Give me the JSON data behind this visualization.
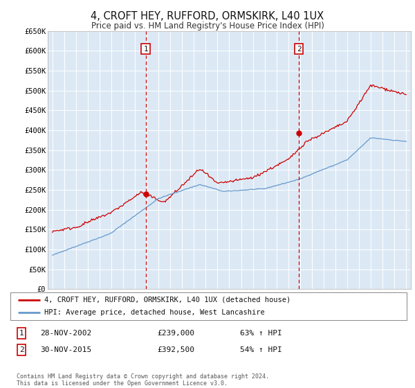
{
  "title": "4, CROFT HEY, RUFFORD, ORMSKIRK, L40 1UX",
  "subtitle": "Price paid vs. HM Land Registry's House Price Index (HPI)",
  "ylim": [
    0,
    650000
  ],
  "yticks": [
    0,
    50000,
    100000,
    150000,
    200000,
    250000,
    300000,
    350000,
    400000,
    450000,
    500000,
    550000,
    600000,
    650000
  ],
  "ytick_labels": [
    "£0",
    "£50K",
    "£100K",
    "£150K",
    "£200K",
    "£250K",
    "£300K",
    "£350K",
    "£400K",
    "£450K",
    "£500K",
    "£550K",
    "£600K",
    "£650K"
  ],
  "bg_color": "#dce9f5",
  "fig_color": "#ffffff",
  "red_color": "#cc0000",
  "blue_color": "#6699cc",
  "transaction1_x": 2002.91,
  "transaction1_price": 239000,
  "transaction2_x": 2015.91,
  "transaction2_price": 392500,
  "legend_line1": "4, CROFT HEY, RUFFORD, ORMSKIRK, L40 1UX (detached house)",
  "legend_line2": "HPI: Average price, detached house, West Lancashire",
  "info1_box": "1",
  "info1_date": "28-NOV-2002",
  "info1_price": "£239,000",
  "info1_hpi": "63% ↑ HPI",
  "info2_box": "2",
  "info2_date": "30-NOV-2015",
  "info2_price": "£392,500",
  "info2_hpi": "54% ↑ HPI",
  "footer": "Contains HM Land Registry data © Crown copyright and database right 2024.\nThis data is licensed under the Open Government Licence v3.0."
}
